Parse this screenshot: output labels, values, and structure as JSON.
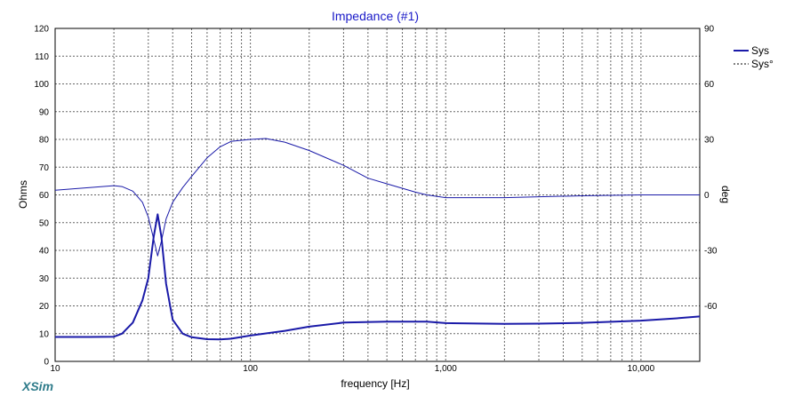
{
  "app": {
    "brand": "XSim"
  },
  "chart_data": {
    "type": "line",
    "title": "Impedance (#1)",
    "xlabel": "frequency [Hz]",
    "ylabel": "Ohms",
    "y2label": "deg",
    "xscale": "log",
    "xlim": [
      10,
      20000
    ],
    "ylim": [
      0,
      120
    ],
    "y2lim": [
      -90,
      90
    ],
    "x_tick_labels": [
      {
        "value": 10,
        "label": "10"
      },
      {
        "value": 100,
        "label": "100"
      },
      {
        "value": 1000,
        "label": "1,000"
      },
      {
        "value": 10000,
        "label": "10,000"
      }
    ],
    "y_ticks": [
      0,
      10,
      20,
      30,
      40,
      50,
      60,
      70,
      80,
      90,
      100,
      110,
      120
    ],
    "y2_ticks": [
      90,
      60,
      30,
      0,
      -30,
      -60
    ],
    "legend": {
      "position": "top-right",
      "entries": [
        {
          "name": "Sys",
          "style": "solid"
        },
        {
          "name": "Sys°",
          "style": "dashed"
        }
      ]
    },
    "series": [
      {
        "name": "Sys",
        "axis": "left",
        "color": "#1a1aa8",
        "points": [
          [
            10,
            8.8
          ],
          [
            15,
            8.8
          ],
          [
            20,
            8.9
          ],
          [
            22,
            10
          ],
          [
            25,
            14
          ],
          [
            28,
            22
          ],
          [
            30,
            30
          ],
          [
            32,
            45
          ],
          [
            33.5,
            53
          ],
          [
            35,
            45
          ],
          [
            37,
            28
          ],
          [
            40,
            15
          ],
          [
            45,
            10
          ],
          [
            50,
            8.7
          ],
          [
            60,
            8.0
          ],
          [
            70,
            7.9
          ],
          [
            80,
            8.2
          ],
          [
            100,
            9.3
          ],
          [
            150,
            11
          ],
          [
            200,
            12.5
          ],
          [
            300,
            14
          ],
          [
            500,
            14.3
          ],
          [
            800,
            14.3
          ],
          [
            1000,
            13.8
          ],
          [
            2000,
            13.5
          ],
          [
            3000,
            13.6
          ],
          [
            5000,
            13.9
          ],
          [
            10000,
            14.7
          ],
          [
            15000,
            15.5
          ],
          [
            20000,
            16.2
          ]
        ]
      },
      {
        "name": "Sys°",
        "axis": "right",
        "color": "#1a1aa8",
        "points": [
          [
            10,
            2.5
          ],
          [
            15,
            4
          ],
          [
            20,
            5
          ],
          [
            22,
            4.5
          ],
          [
            25,
            2
          ],
          [
            28,
            -4
          ],
          [
            30,
            -12
          ],
          [
            32,
            -24
          ],
          [
            33.5,
            -33
          ],
          [
            35,
            -25
          ],
          [
            37,
            -13
          ],
          [
            40,
            -4
          ],
          [
            45,
            4
          ],
          [
            50,
            10
          ],
          [
            60,
            20
          ],
          [
            70,
            26
          ],
          [
            80,
            29
          ],
          [
            100,
            30
          ],
          [
            120,
            30.5
          ],
          [
            150,
            28.5
          ],
          [
            200,
            24
          ],
          [
            300,
            16
          ],
          [
            400,
            9
          ],
          [
            500,
            6
          ],
          [
            700,
            1.5
          ],
          [
            800,
            0
          ],
          [
            1000,
            -1.5
          ],
          [
            2000,
            -1.5
          ],
          [
            3000,
            -1
          ],
          [
            5000,
            -0.5
          ],
          [
            10000,
            0
          ],
          [
            20000,
            0
          ]
        ]
      }
    ]
  }
}
